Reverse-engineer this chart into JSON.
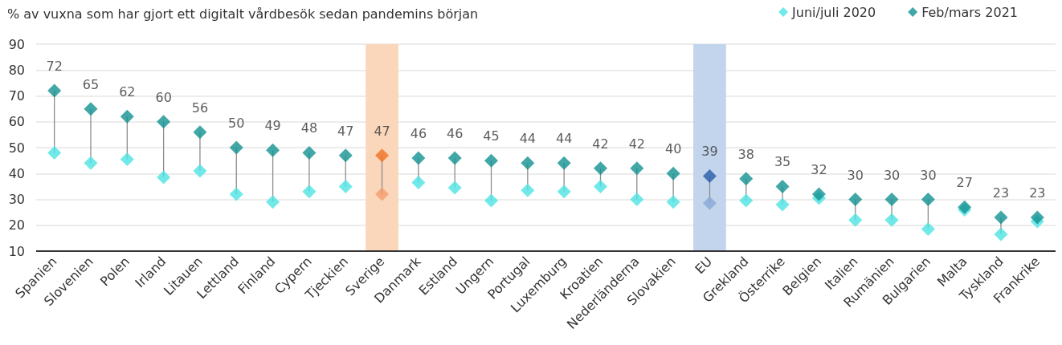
{
  "chart_data": {
    "type": "scatter",
    "title": "% av vuxna som har gjort ett digitalt vårdbesök sedan pandemins början",
    "categories": [
      "Spanien",
      "Slovenien",
      "Polen",
      "Irland",
      "Litauen",
      "Lettland",
      "Finland",
      "Cypern",
      "Tjeckien",
      "Sverige",
      "Danmark",
      "Estland",
      "Ungern",
      "Portugal",
      "Luxemburg",
      "Kroatien",
      "Nederländerna",
      "Slovakien",
      "EU",
      "Grekland",
      "Österrike",
      "Belgien",
      "Italien",
      "Rumänien",
      "Bulgarien",
      "Malta",
      "Tyskland",
      "Frankrike"
    ],
    "series": [
      {
        "name": "Juni/juli 2020",
        "color": "#4de3e3",
        "colors": [
          "#4de3e3",
          "#4de3e3",
          "#4de3e3",
          "#4de3e3",
          "#4de3e3",
          "#4de3e3",
          "#4de3e3",
          "#4de3e3",
          "#4de3e3",
          "#f59e6e",
          "#4de3e3",
          "#4de3e3",
          "#4de3e3",
          "#4de3e3",
          "#4de3e3",
          "#4de3e3",
          "#4de3e3",
          "#4de3e3",
          "#8aa8d6",
          "#4de3e3",
          "#4de3e3",
          "#4de3e3",
          "#4de3e3",
          "#4de3e3",
          "#4de3e3",
          "#4de3e3",
          "#4de3e3",
          "#4de3e3"
        ],
        "values": [
          48,
          44,
          45.5,
          38.5,
          41,
          32,
          29,
          33,
          35,
          32,
          36.5,
          34.5,
          29.5,
          33.5,
          33,
          35,
          30,
          29,
          28.5,
          29.5,
          28,
          30.5,
          22,
          22,
          18.5,
          26,
          16.5,
          21.5
        ]
      },
      {
        "name": "Feb/mars 2021",
        "color": "#139191",
        "colors": [
          "#139191",
          "#139191",
          "#139191",
          "#139191",
          "#139191",
          "#139191",
          "#139191",
          "#139191",
          "#139191",
          "#f07226",
          "#139191",
          "#139191",
          "#139191",
          "#139191",
          "#139191",
          "#139191",
          "#139191",
          "#139191",
          "#2a5caa",
          "#139191",
          "#139191",
          "#139191",
          "#139191",
          "#139191",
          "#139191",
          "#139191",
          "#139191",
          "#139191"
        ],
        "values": [
          72,
          65,
          62,
          60,
          56,
          50,
          49,
          48,
          47,
          47,
          46,
          46,
          45,
          44,
          44,
          42,
          42,
          40,
          39,
          38,
          35,
          32,
          30,
          30,
          30,
          27,
          23,
          23
        ],
        "value_labels": [
          "72",
          "65",
          "62",
          "60",
          "56",
          "50",
          "49",
          "48",
          "47",
          "47",
          "46",
          "46",
          "45",
          "44",
          "44",
          "42",
          "42",
          "40",
          "39",
          "38",
          "35",
          "32",
          "30",
          "30",
          "30",
          "27",
          "23",
          "23"
        ]
      }
    ],
    "ylim": [
      10,
      90
    ],
    "yticks": [
      10,
      20,
      30,
      40,
      50,
      60,
      70,
      80,
      90
    ],
    "grid": "y",
    "legend": "top right",
    "marker": "diamond",
    "bands": [
      {
        "axis": "x",
        "from": "Sverige",
        "to": "Sverige",
        "color": "#fad7bb"
      },
      {
        "axis": "x",
        "from": "EU",
        "to": "EU",
        "color": "#c3d5ec"
      }
    ]
  }
}
